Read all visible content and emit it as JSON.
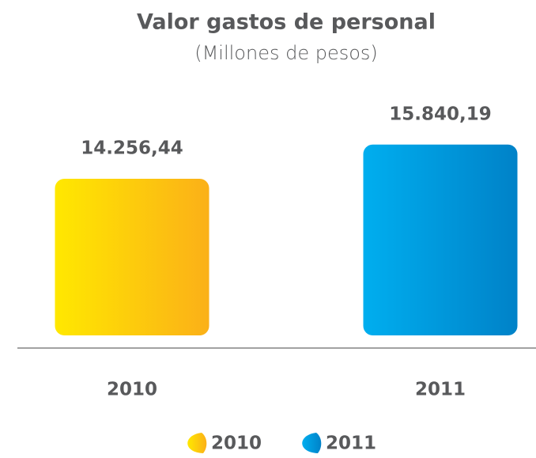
{
  "chart_data": {
    "type": "bar",
    "title": "Valor gastos de personal",
    "subtitle": "(Millones de pesos)",
    "categories": [
      "2010",
      "2011"
    ],
    "values": [
      14256.44,
      15840.19
    ],
    "value_labels": [
      "14.256,44",
      "15.840,19"
    ],
    "colors": [
      [
        "#ffe800",
        "#fbb018"
      ],
      [
        "#00aeef",
        "#0082c8"
      ]
    ],
    "ylim": [
      7000,
      16000
    ]
  }
}
